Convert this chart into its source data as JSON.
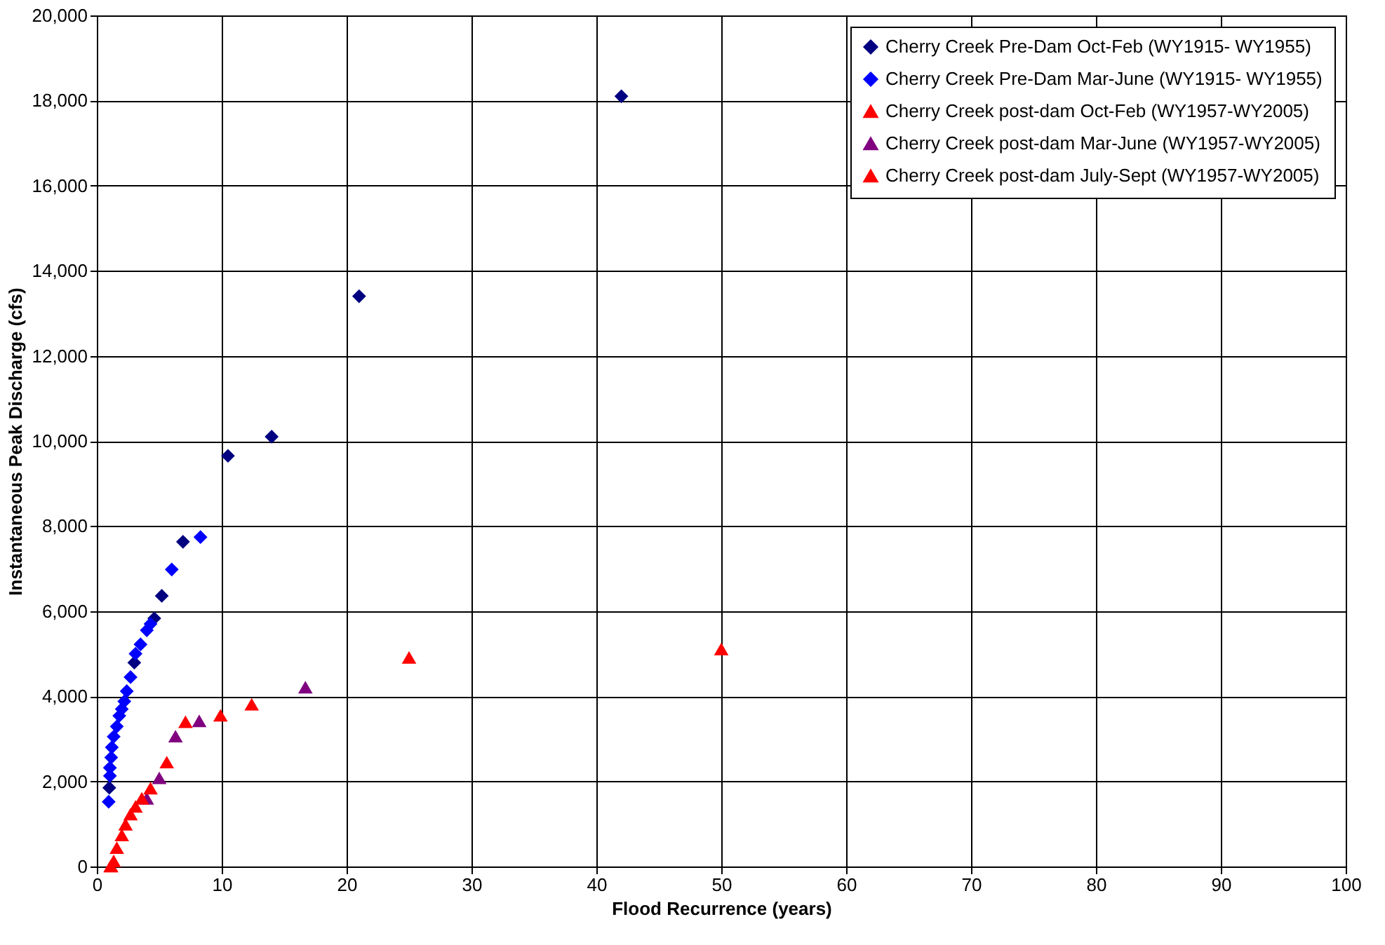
{
  "chart_data": {
    "type": "scatter",
    "xlabel": "Flood Recurrence (years)",
    "ylabel": "Instantaneous Peak Discharge (cfs)",
    "xlim": [
      0,
      100
    ],
    "xticks": [
      0,
      10,
      20,
      30,
      40,
      50,
      60,
      70,
      80,
      90,
      100
    ],
    "ylim": [
      0,
      20000
    ],
    "yticks": [
      {
        "value": 0,
        "label": "0"
      },
      {
        "value": 2000,
        "label": "2,000"
      },
      {
        "value": 4000,
        "label": "4,000"
      },
      {
        "value": 6000,
        "label": "6,000"
      },
      {
        "value": 8000,
        "label": "8,000"
      },
      {
        "value": 10000,
        "label": "10,000"
      },
      {
        "value": 12000,
        "label": "12,000"
      },
      {
        "value": 14000,
        "label": "14,000"
      },
      {
        "value": 16000,
        "label": "16,000"
      },
      {
        "value": 18000,
        "label": "18,000"
      },
      {
        "value": 20000,
        "label": "20,000"
      }
    ],
    "grid": true,
    "legend": "top right",
    "series": [
      {
        "name": "Cherry Creek Pre-Dam Oct-Feb (WY1915- WY1955)",
        "color": "#000080",
        "marker": "diamond",
        "x": [
          42,
          21,
          14,
          10.5,
          6.9,
          5.2,
          4.6,
          3.0,
          1.0
        ],
        "values": [
          18100,
          13400,
          10100,
          9650,
          7630,
          6360,
          5830,
          4790,
          1850
        ]
      },
      {
        "name": "Cherry Creek Pre-Dam Mar-June (WY1915- WY1955)",
        "color": "#0000ff",
        "marker": "diamond",
        "x": [
          8.3,
          6.0,
          4.3,
          4.0,
          3.5,
          3.1,
          2.7,
          2.4,
          2.2,
          2.0,
          1.8,
          1.6,
          1.35,
          1.2,
          1.15,
          1.05,
          1.05,
          0.95
        ],
        "values": [
          7740,
          6980,
          5700,
          5550,
          5220,
          5000,
          4450,
          4120,
          3880,
          3700,
          3540,
          3290,
          3050,
          2800,
          2560,
          2320,
          2130,
          1520
        ]
      },
      {
        "name": "Cherry Creek post-dam Oct-Feb (WY1957-WY2005)",
        "color": "#ff0000",
        "marker": "triangle",
        "x": [
          5.6,
          1.1
        ],
        "values": [
          2440,
          0
        ]
      },
      {
        "name": "Cherry Creek post-dam Mar-June (WY1957-WY2005)",
        "color": "#800080",
        "marker": "triangle",
        "x": [
          16.7,
          8.2,
          6.3,
          5.0,
          4.0
        ],
        "values": [
          4200,
          3410,
          3050,
          2070,
          1590
        ]
      },
      {
        "name": "Cherry Creek post-dam July-Sept (WY1957-WY2005)",
        "color": "#ff0000",
        "marker": "triangle",
        "x": [
          50,
          25,
          12.4,
          9.9,
          7.1,
          4.3,
          3.6,
          3.1,
          2.7,
          2.3,
          2.0,
          1.6,
          1.35,
          1.15
        ],
        "values": [
          5100,
          4900,
          3800,
          3540,
          3390,
          1830,
          1590,
          1400,
          1220,
          980,
          730,
          430,
          120,
          0
        ]
      }
    ]
  }
}
